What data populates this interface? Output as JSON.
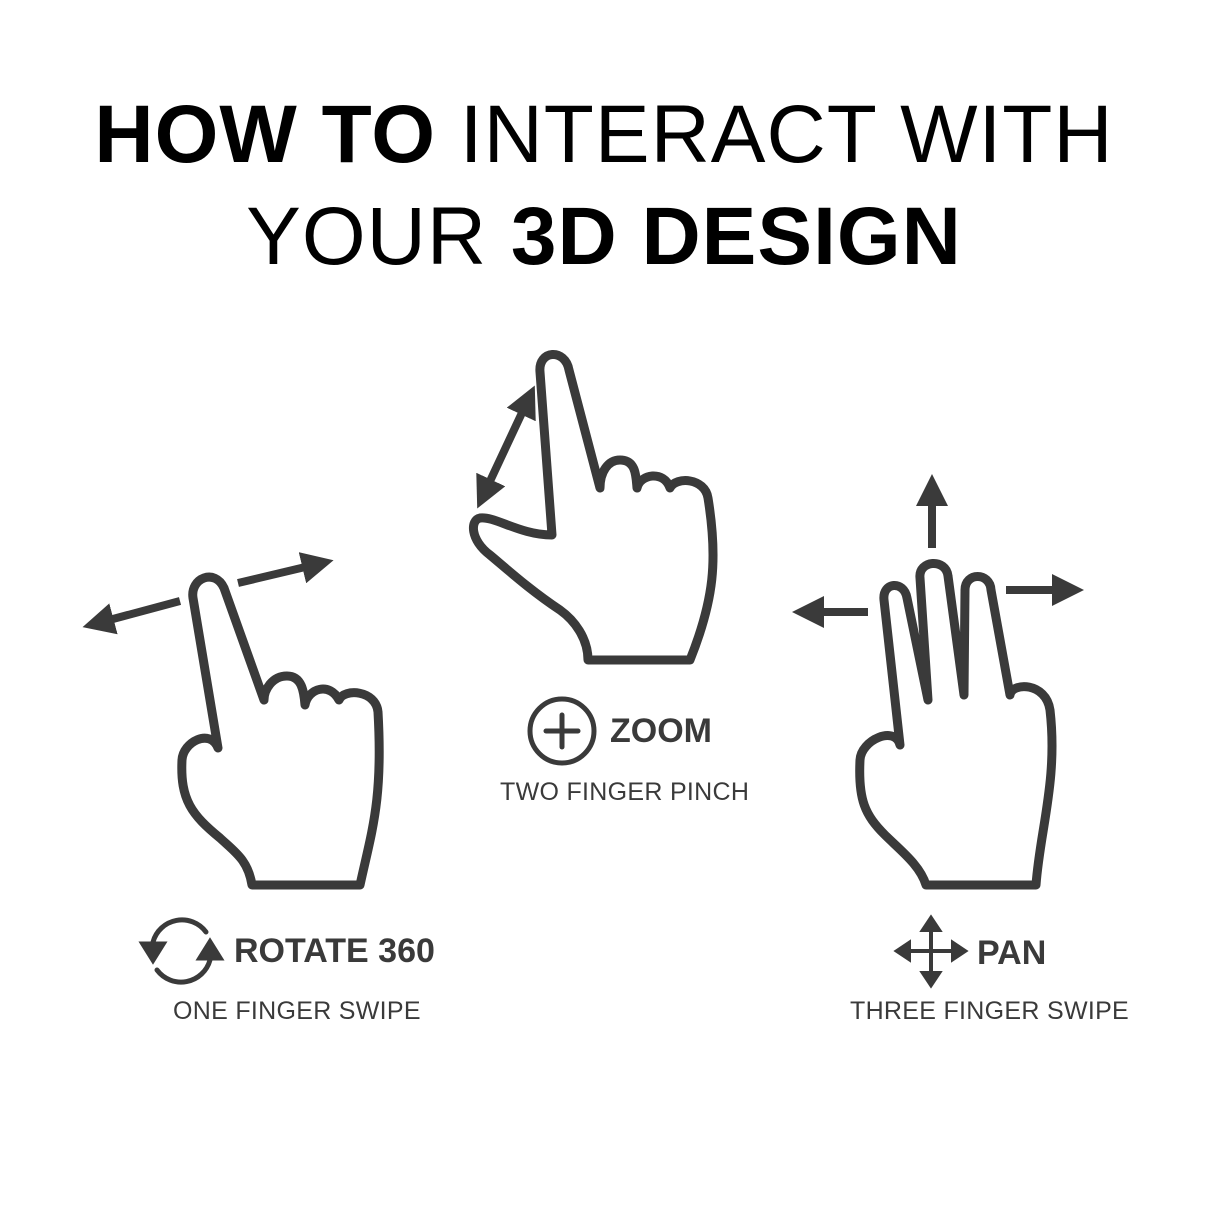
{
  "headline": {
    "line1_bold": "HOW TO",
    "line1_light": "INTERACT WITH",
    "line2_light": "YOUR",
    "line2_bold": "3D DESIGN"
  },
  "gestures": {
    "rotate": {
      "title": "ROTATE 360",
      "subtitle": "ONE FINGER SWIPE",
      "icon": "rotate-icon"
    },
    "zoom": {
      "title": "ZOOM",
      "subtitle": "TWO FINGER PINCH",
      "icon": "zoom-plus-icon"
    },
    "pan": {
      "title": "PAN",
      "subtitle": "THREE FINGER SWIPE",
      "icon": "pan-arrows-icon"
    }
  },
  "colors": {
    "heading": "#000000",
    "icon_stroke": "#3a3a3a",
    "background": "#ffffff"
  }
}
